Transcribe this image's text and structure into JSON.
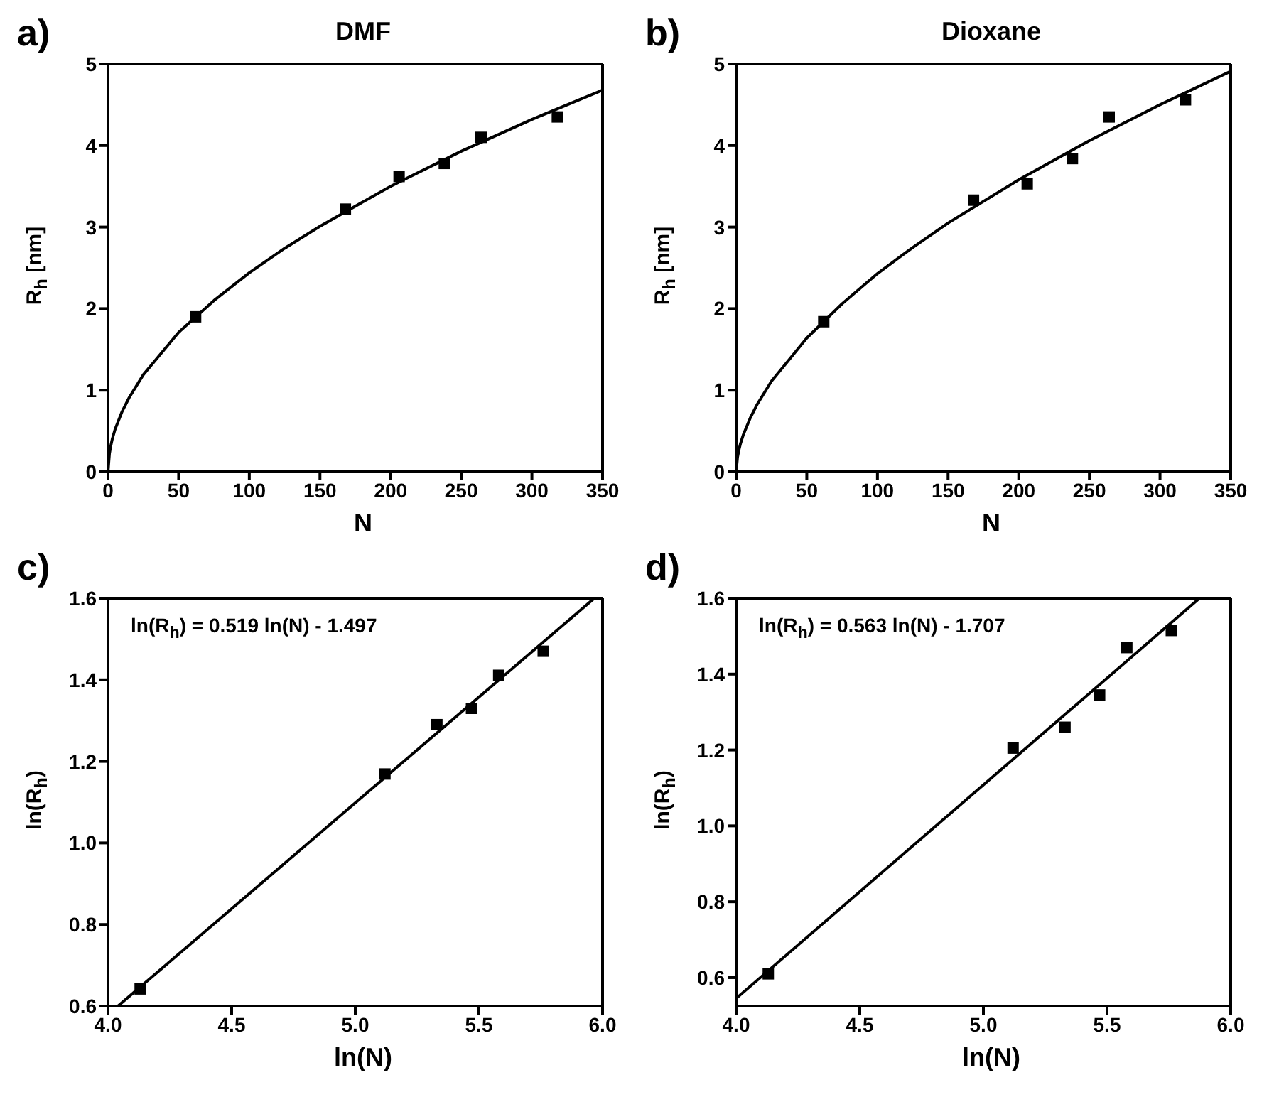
{
  "chart_data": [
    {
      "type": "scatter",
      "title": "DMF",
      "xlabel": "N",
      "ylabel": "R$_{h}$ [nm]",
      "annotations": [
        "a)"
      ],
      "x": [
        62,
        168,
        206,
        238,
        264,
        318
      ],
      "xlim": [
        0,
        350
      ],
      "xticks": [
        0,
        50,
        100,
        150,
        200,
        250,
        300,
        350
      ],
      "ylim": [
        0,
        5
      ],
      "yticks": [
        0,
        1,
        2,
        3,
        4,
        5
      ],
      "series": [
        {
          "color": "#000000",
          "marker": "square",
          "values": [
            1.9,
            3.22,
            3.62,
            3.78,
            4.1,
            4.35
          ]
        },
        {
          "type": "line",
          "color": "#000000",
          "marker": "none",
          "x": [
            0,
            1,
            2,
            3,
            5,
            10,
            15,
            25,
            50,
            75,
            100,
            125,
            150,
            200,
            250,
            300,
            350
          ],
          "values": [
            0,
            0.22,
            0.32,
            0.4,
            0.52,
            0.74,
            0.91,
            1.19,
            1.71,
            2.1,
            2.44,
            2.74,
            3.01,
            3.5,
            3.93,
            4.32,
            4.68
          ]
        }
      ]
    },
    {
      "type": "scatter",
      "title": "Dioxane",
      "xlabel": "N",
      "ylabel": "R$_{h}$ [nm]",
      "annotations": [
        "b)"
      ],
      "x": [
        62,
        168,
        206,
        238,
        264,
        318
      ],
      "xlim": [
        0,
        350
      ],
      "xticks": [
        0,
        50,
        100,
        150,
        200,
        250,
        300,
        350
      ],
      "ylim": [
        0,
        5
      ],
      "yticks": [
        0,
        1,
        2,
        3,
        4,
        5
      ],
      "series": [
        {
          "color": "#000000",
          "marker": "square",
          "values": [
            1.84,
            3.33,
            3.53,
            3.84,
            4.35,
            4.56
          ]
        },
        {
          "type": "line",
          "color": "#000000",
          "marker": "none",
          "x": [
            0,
            1,
            2,
            3,
            5,
            10,
            15,
            25,
            50,
            75,
            100,
            125,
            150,
            200,
            250,
            300,
            350
          ],
          "values": [
            0,
            0.18,
            0.27,
            0.34,
            0.45,
            0.66,
            0.83,
            1.11,
            1.64,
            2.06,
            2.43,
            2.75,
            3.05,
            3.58,
            4.06,
            4.5,
            4.91
          ]
        }
      ]
    },
    {
      "type": "scatter",
      "xlabel": "ln(N)",
      "ylabel": "ln(R$_{h}$)",
      "annotations": [
        "c)",
        "ln(R$_{h}$) = 0.519 ln(N) - 1.497"
      ],
      "x": [
        4.13,
        5.12,
        5.33,
        5.47,
        5.58,
        5.76
      ],
      "xlim": [
        4,
        6
      ],
      "xticks": [
        {
          "value": 4,
          "label": "4.0"
        },
        4.5,
        {
          "value": 5,
          "label": "5.0"
        },
        5.5,
        {
          "value": 6,
          "label": "6.0"
        }
      ],
      "ylim": [
        0.6,
        1.6
      ],
      "yticks": [
        0.6,
        0.8,
        {
          "value": 1,
          "label": "1.0"
        },
        1.2,
        1.4,
        1.6
      ],
      "series": [
        {
          "color": "#000000",
          "marker": "square",
          "values": [
            0.642,
            1.169,
            1.29,
            1.33,
            1.411,
            1.47
          ]
        },
        {
          "type": "line",
          "color": "#000000",
          "marker": "none",
          "x": [
            4.04,
            5.967
          ],
          "values": [
            0.6,
            1.6
          ]
        }
      ]
    },
    {
      "type": "scatter",
      "xlabel": "ln(N)",
      "ylabel": "ln(R$_{h}$)",
      "annotations": [
        "d)",
        "ln(R$_{h}$) = 0.563 ln(N) - 1.707"
      ],
      "x": [
        4.13,
        5.12,
        5.33,
        5.47,
        5.58,
        5.76
      ],
      "xlim": [
        4,
        6
      ],
      "xticks": [
        {
          "value": 4,
          "label": "4.0"
        },
        4.5,
        {
          "value": 5,
          "label": "5.0"
        },
        5.5,
        {
          "value": 6,
          "label": "6.0"
        }
      ],
      "ylim": [
        0.525,
        1.6
      ],
      "yticks": [
        0.6,
        0.8,
        {
          "value": 1,
          "label": "1.0"
        },
        1.2,
        1.4,
        1.6
      ],
      "series": [
        {
          "color": "#000000",
          "marker": "square",
          "values": [
            0.61,
            1.205,
            1.26,
            1.345,
            1.47,
            1.515
          ]
        },
        {
          "type": "line",
          "color": "#000000",
          "marker": "none",
          "x": [
            4,
            5.874
          ],
          "values": [
            0.545,
            1.6
          ]
        }
      ]
    }
  ]
}
